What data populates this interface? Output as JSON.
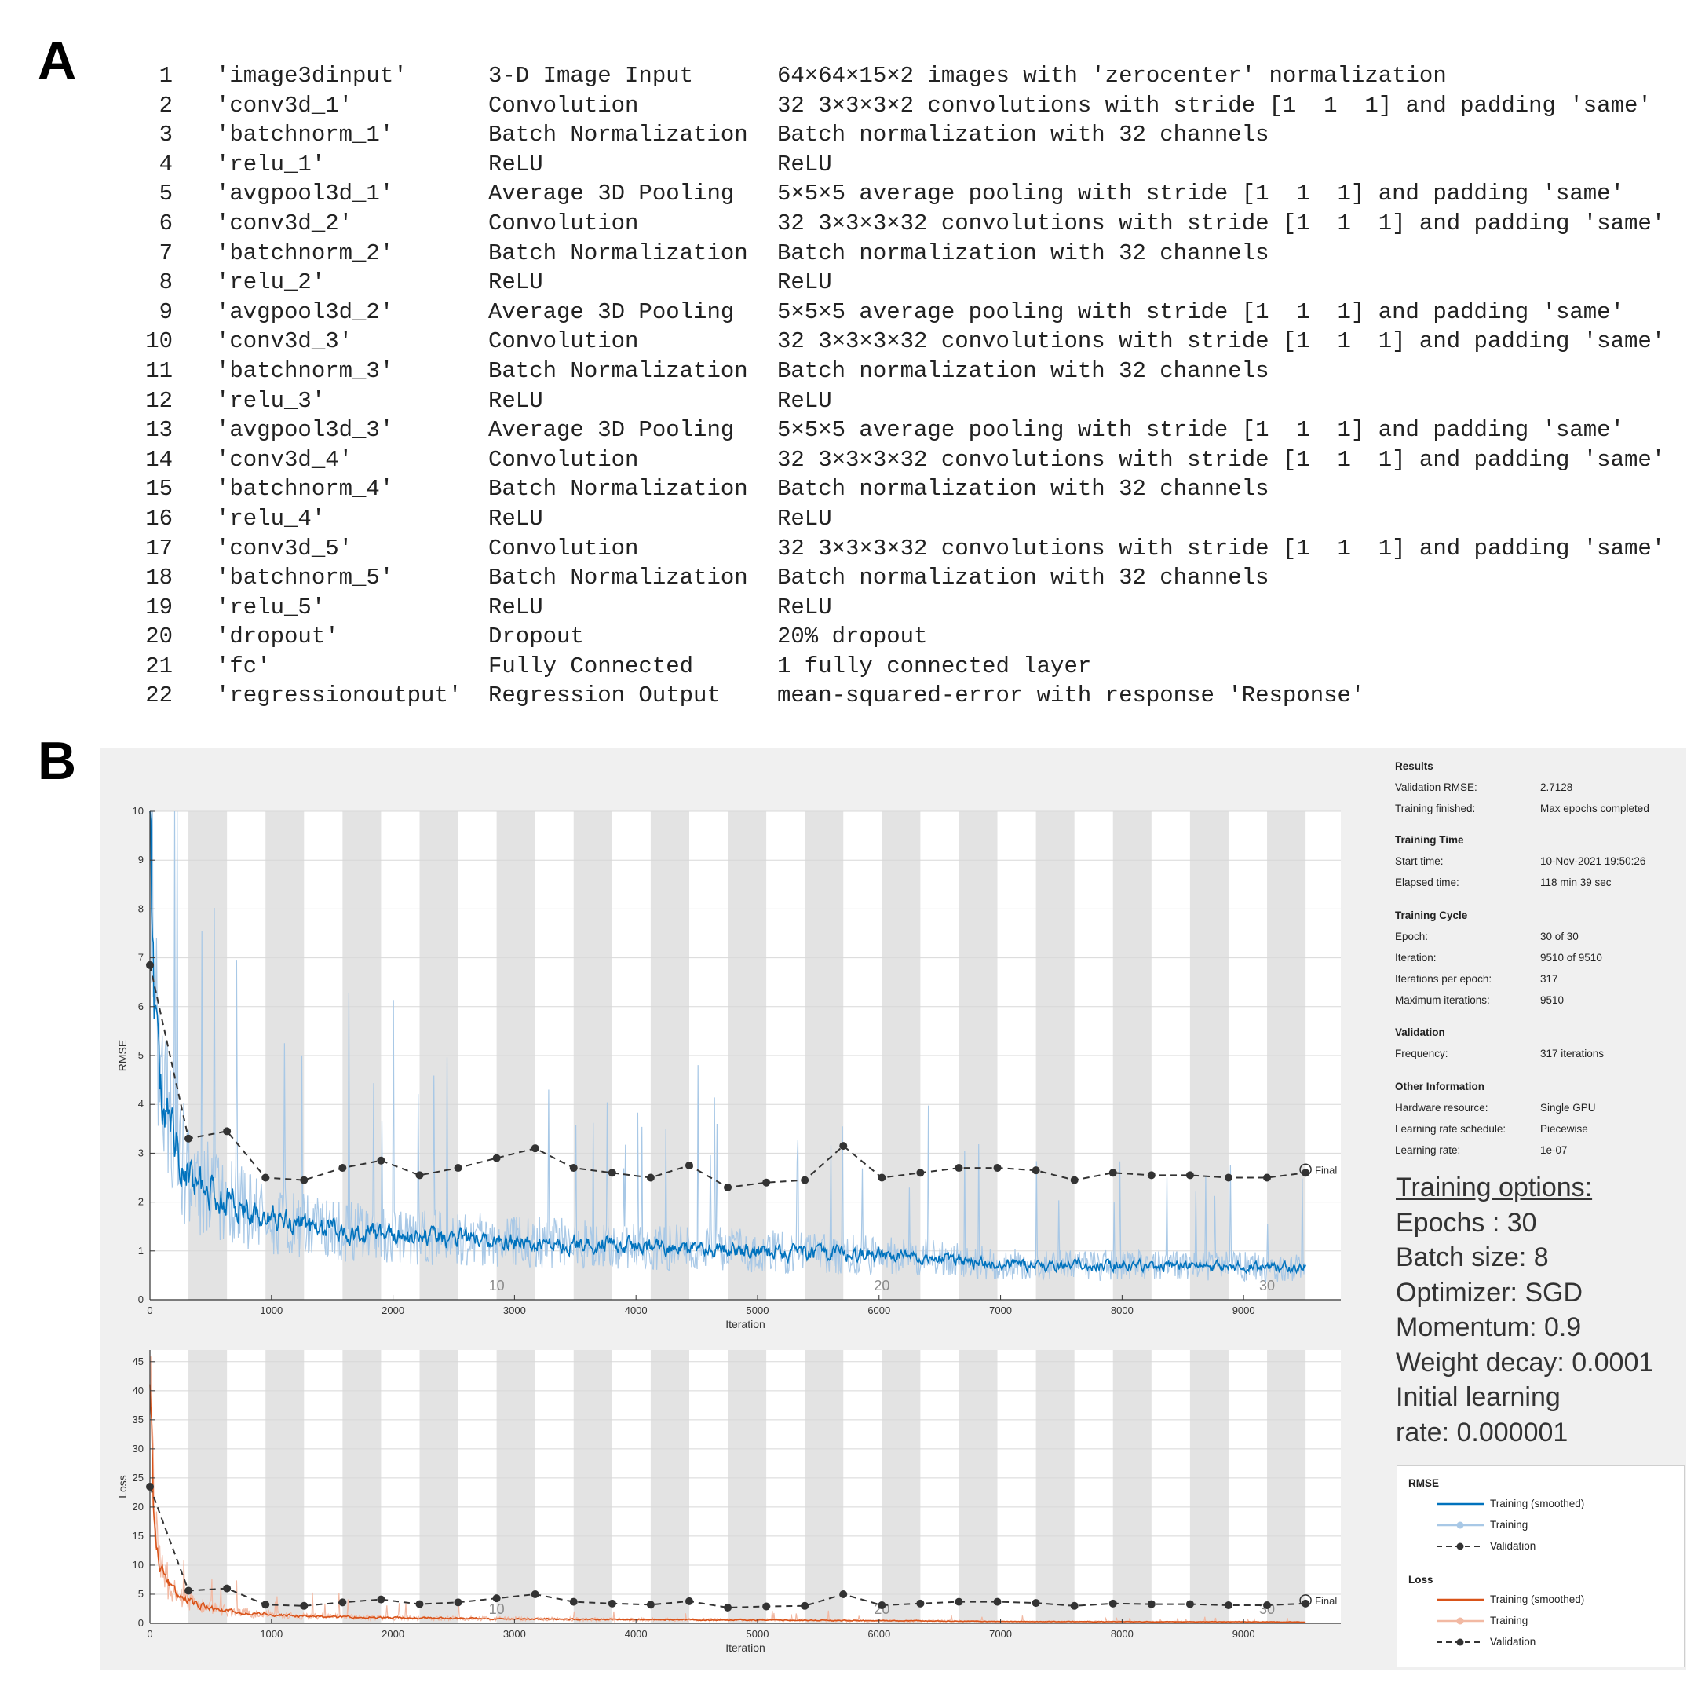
{
  "panel_labels": {
    "a": "A",
    "b": "B"
  },
  "layers": [
    {
      "num": "1",
      "name": "'image3dinput'",
      "type": "3-D Image Input",
      "desc": "64×64×15×2 images with 'zerocenter' normalization"
    },
    {
      "num": "2",
      "name": "'conv3d_1'",
      "type": "Convolution",
      "desc": "32 3×3×3×2 convolutions with stride [1  1  1] and padding 'same'"
    },
    {
      "num": "3",
      "name": "'batchnorm_1'",
      "type": "Batch Normalization",
      "desc": "Batch normalization with 32 channels"
    },
    {
      "num": "4",
      "name": "'relu_1'",
      "type": "ReLU",
      "desc": "ReLU"
    },
    {
      "num": "5",
      "name": "'avgpool3d_1'",
      "type": "Average 3D Pooling",
      "desc": "5×5×5 average pooling with stride [1  1  1] and padding 'same'"
    },
    {
      "num": "6",
      "name": "'conv3d_2'",
      "type": "Convolution",
      "desc": "32 3×3×3×32 convolutions with stride [1  1  1] and padding 'same'"
    },
    {
      "num": "7",
      "name": "'batchnorm_2'",
      "type": "Batch Normalization",
      "desc": "Batch normalization with 32 channels"
    },
    {
      "num": "8",
      "name": "'relu_2'",
      "type": "ReLU",
      "desc": "ReLU"
    },
    {
      "num": "9",
      "name": "'avgpool3d_2'",
      "type": "Average 3D Pooling",
      "desc": "5×5×5 average pooling with stride [1  1  1] and padding 'same'"
    },
    {
      "num": "10",
      "name": "'conv3d_3'",
      "type": "Convolution",
      "desc": "32 3×3×3×32 convolutions with stride [1  1  1] and padding 'same'"
    },
    {
      "num": "11",
      "name": "'batchnorm_3'",
      "type": "Batch Normalization",
      "desc": "Batch normalization with 32 channels"
    },
    {
      "num": "12",
      "name": "'relu_3'",
      "type": "ReLU",
      "desc": "ReLU"
    },
    {
      "num": "13",
      "name": "'avgpool3d_3'",
      "type": "Average 3D Pooling",
      "desc": "5×5×5 average pooling with stride [1  1  1] and padding 'same'"
    },
    {
      "num": "14",
      "name": "'conv3d_4'",
      "type": "Convolution",
      "desc": "32 3×3×3×32 convolutions with stride [1  1  1] and padding 'same'"
    },
    {
      "num": "15",
      "name": "'batchnorm_4'",
      "type": "Batch Normalization",
      "desc": "Batch normalization with 32 channels"
    },
    {
      "num": "16",
      "name": "'relu_4'",
      "type": "ReLU",
      "desc": "ReLU"
    },
    {
      "num": "17",
      "name": "'conv3d_5'",
      "type": "Convolution",
      "desc": "32 3×3×3×32 convolutions with stride [1  1  1] and padding 'same'"
    },
    {
      "num": "18",
      "name": "'batchnorm_5'",
      "type": "Batch Normalization",
      "desc": "Batch normalization with 32 channels"
    },
    {
      "num": "19",
      "name": "'relu_5'",
      "type": "ReLU",
      "desc": "ReLU"
    },
    {
      "num": "20",
      "name": "'dropout'",
      "type": "Dropout",
      "desc": "20% dropout"
    },
    {
      "num": "21",
      "name": "'fc'",
      "type": "Fully Connected",
      "desc": "1 fully connected layer"
    },
    {
      "num": "22",
      "name": "'regressionoutput'",
      "type": "Regression Output",
      "desc": "mean-squared-error with response 'Response'"
    }
  ],
  "info": {
    "results": {
      "title": "Results",
      "rmse_label": "Validation RMSE:",
      "rmse_value": "2.7128",
      "finished_label": "Training finished:",
      "finished_value": "Max epochs completed"
    },
    "time": {
      "title": "Training Time",
      "start_label": "Start time:",
      "start_value": "10-Nov-2021 19:50:26",
      "elapsed_label": "Elapsed time:",
      "elapsed_value": "118 min 39 sec"
    },
    "cycle": {
      "title": "Training Cycle",
      "epoch_label": "Epoch:",
      "epoch_value": "30 of 30",
      "iter_label": "Iteration:",
      "iter_value": "9510 of 9510",
      "ipe_label": "Iterations per epoch:",
      "ipe_value": "317",
      "max_label": "Maximum iterations:",
      "max_value": "9510"
    },
    "validation": {
      "title": "Validation",
      "freq_label": "Frequency:",
      "freq_value": "317 iterations"
    },
    "other": {
      "title": "Other Information",
      "hw_label": "Hardware resource:",
      "hw_value": "Single GPU",
      "sched_label": "Learning rate schedule:",
      "sched_value": "Piecewise",
      "lr_label": "Learning rate:",
      "lr_value": "1e-07"
    }
  },
  "training_options": {
    "title": "Training options:",
    "lines": [
      "Epochs : 30",
      "Batch size: 8",
      "Optimizer: SGD",
      "Momentum: 0.9",
      "Weight decay: 0.0001",
      "Initial learning",
      "rate: 0.000001"
    ]
  },
  "legend": {
    "rmse_title": "RMSE",
    "loss_title": "Loss",
    "smoothed": "Training (smoothed)",
    "training": "Training",
    "validation": "Validation"
  },
  "colors": {
    "rmse_smoothed": "#0072BD",
    "rmse_raw": "#a8c8e6",
    "loss_smoothed": "#D95319",
    "loss_raw": "#f2b9a3",
    "validation": "#333333",
    "epoch_shade": "#e3e3e3"
  },
  "chart_data": [
    {
      "type": "line",
      "title": "",
      "xlabel": "Iteration",
      "ylabel": "RMSE",
      "xlim": [
        0,
        9800
      ],
      "ylim": [
        0,
        10
      ],
      "xticks": [
        0,
        1000,
        2000,
        3000,
        4000,
        5000,
        6000,
        7000,
        8000,
        9000
      ],
      "yticks": [
        0,
        1,
        2,
        3,
        4,
        5,
        6,
        7,
        8,
        9,
        10
      ],
      "epoch_length": 317,
      "epoch_labels": [
        {
          "text": "10",
          "x": 2853
        },
        {
          "text": "20",
          "x": 6023
        },
        {
          "text": "30",
          "x": 9193
        }
      ],
      "final_label": "Final",
      "smoothed_profile": {
        "x": [
          0,
          30,
          80,
          150,
          250,
          400,
          600,
          900,
          1300,
          1800,
          2500,
          3500,
          4500,
          5500,
          6500,
          7000,
          8000,
          9000,
          9510
        ],
        "y": [
          9.5,
          6.2,
          4.5,
          3.6,
          2.9,
          2.4,
          2.05,
          1.75,
          1.5,
          1.35,
          1.25,
          1.15,
          1.05,
          0.95,
          0.85,
          0.72,
          0.7,
          0.68,
          0.63
        ]
      },
      "series": [
        {
          "name": "Validation",
          "x": [
            0,
            317,
            634,
            951,
            1268,
            1585,
            1902,
            2219,
            2536,
            2853,
            3170,
            3487,
            3804,
            4121,
            4438,
            4755,
            5072,
            5389,
            5706,
            6023,
            6340,
            6657,
            6974,
            7291,
            7608,
            7925,
            8242,
            8559,
            8876,
            9193,
            9510
          ],
          "y": [
            6.85,
            3.3,
            3.45,
            2.5,
            2.45,
            2.7,
            2.85,
            2.55,
            2.7,
            2.9,
            3.1,
            2.7,
            2.6,
            2.5,
            2.75,
            2.3,
            2.4,
            2.45,
            3.15,
            2.5,
            2.6,
            2.7,
            2.7,
            2.65,
            2.45,
            2.6,
            2.55,
            2.55,
            2.5,
            2.5,
            2.6
          ]
        }
      ]
    },
    {
      "type": "line",
      "title": "",
      "xlabel": "Iteration",
      "ylabel": "Loss",
      "xlim": [
        0,
        9800
      ],
      "ylim": [
        0,
        47
      ],
      "xticks": [
        0,
        1000,
        2000,
        3000,
        4000,
        5000,
        6000,
        7000,
        8000,
        9000
      ],
      "yticks": [
        0,
        5,
        10,
        15,
        20,
        25,
        30,
        35,
        40,
        45
      ],
      "epoch_length": 317,
      "epoch_labels": [
        {
          "text": "10",
          "x": 2853
        },
        {
          "text": "20",
          "x": 6023
        },
        {
          "text": "30",
          "x": 9193
        }
      ],
      "final_label": "Final",
      "smoothed_profile": {
        "x": [
          0,
          30,
          80,
          150,
          250,
          400,
          600,
          900,
          1300,
          1800,
          2500,
          3500,
          4500,
          5500,
          6500,
          7000,
          8000,
          9000,
          9510
        ],
        "y": [
          45,
          19,
          11,
          7,
          4.5,
          3.2,
          2.2,
          1.6,
          1.2,
          1.0,
          0.85,
          0.7,
          0.6,
          0.5,
          0.4,
          0.3,
          0.28,
          0.25,
          0.22
        ]
      },
      "series": [
        {
          "name": "Validation",
          "x": [
            0,
            317,
            634,
            951,
            1268,
            1585,
            1902,
            2219,
            2536,
            2853,
            3170,
            3487,
            3804,
            4121,
            4438,
            4755,
            5072,
            5389,
            5706,
            6023,
            6340,
            6657,
            6974,
            7291,
            7608,
            7925,
            8242,
            8559,
            8876,
            9193,
            9510
          ],
          "y": [
            23.5,
            5.6,
            6.0,
            3.2,
            3.0,
            3.6,
            4.1,
            3.3,
            3.6,
            4.3,
            5.0,
            3.7,
            3.4,
            3.2,
            3.8,
            2.7,
            2.9,
            3.0,
            5.0,
            3.1,
            3.4,
            3.7,
            3.7,
            3.5,
            3.0,
            3.4,
            3.3,
            3.3,
            3.1,
            3.1,
            3.4
          ]
        }
      ]
    }
  ]
}
